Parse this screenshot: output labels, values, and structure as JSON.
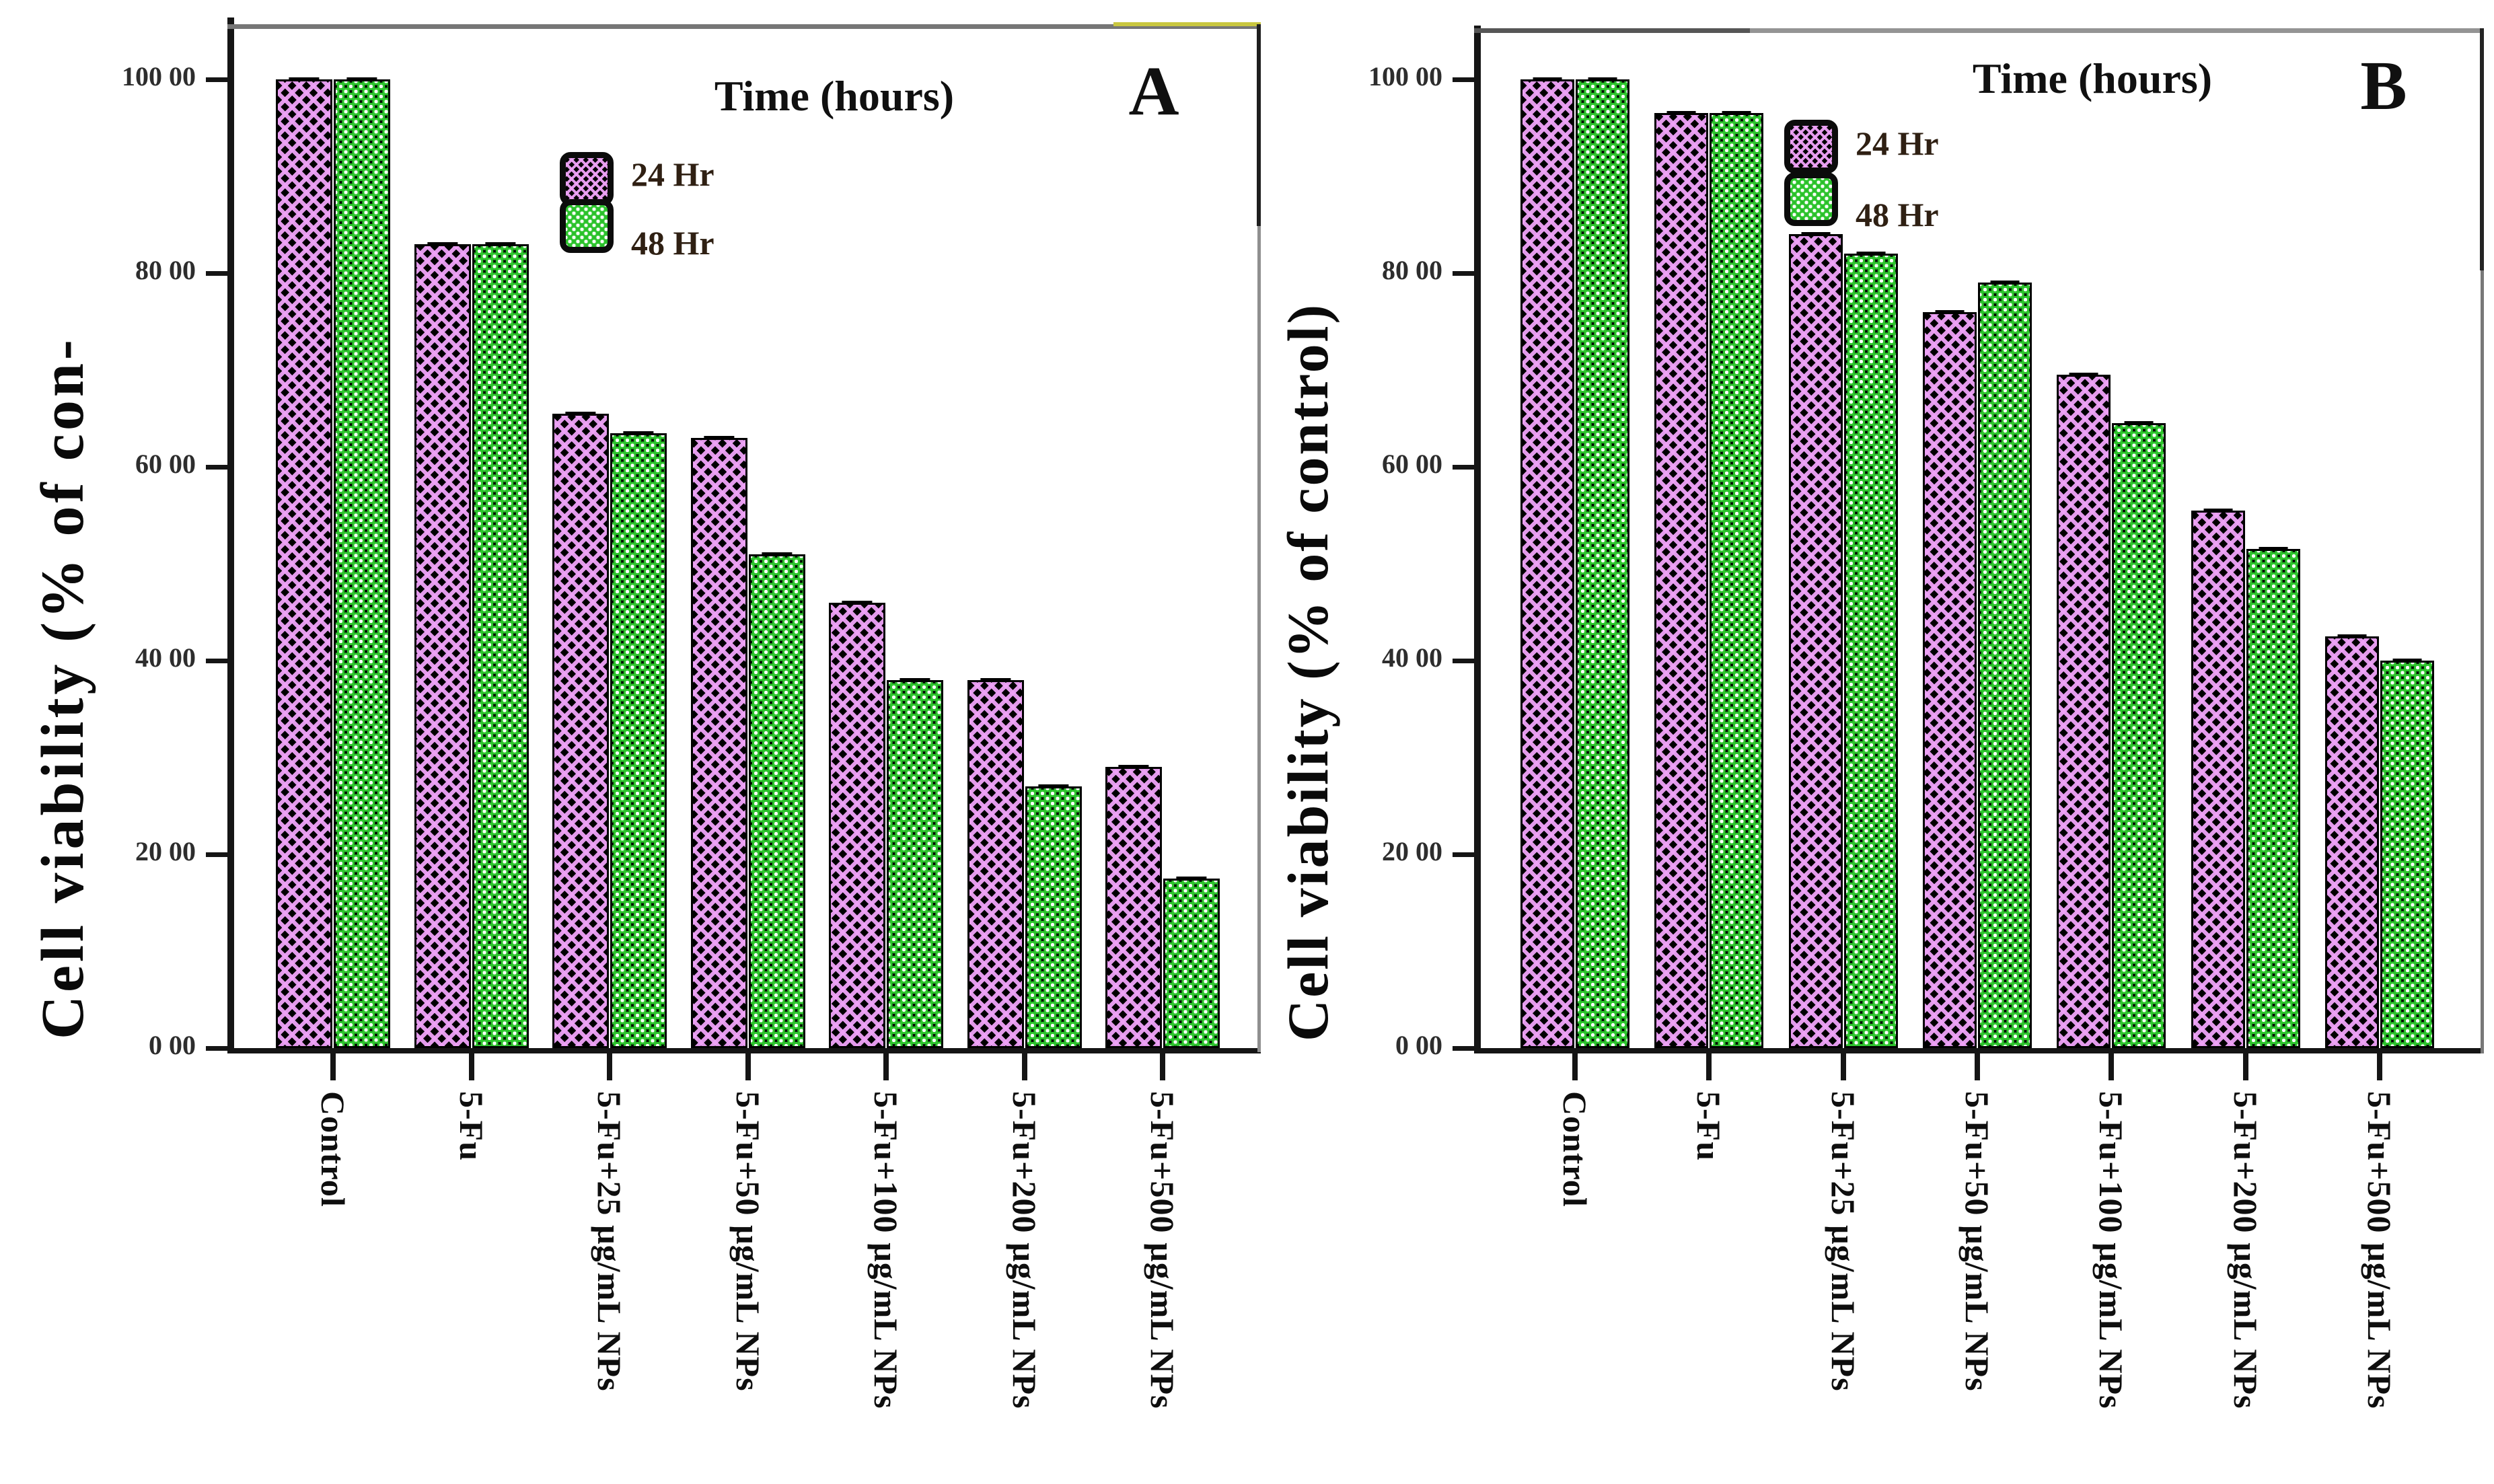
{
  "colors": {
    "series_24hr_violet": "#eea2f7",
    "series_48hr_green": "#2ec52e",
    "bar_background": "#000000",
    "axis": "#151515",
    "panel_a_top_border": "#767676",
    "panel_a_top_accent_yellow": "#c9c73f",
    "panel_b_top_border": "#565656",
    "legend_text": "#2f2013",
    "tick_text": "#2d2d2d"
  },
  "chart_data": [
    {
      "type": "bar",
      "panel_label": "A",
      "legend_title": "Time (hours)",
      "legend_position": "upper-left-inside",
      "grid": false,
      "error_bars": true,
      "ylabel": "Cell viability (% of con-",
      "xlabel": "",
      "ylim": [
        0,
        105
      ],
      "ytick_values": [
        0,
        20,
        40,
        60,
        80,
        100
      ],
      "ytick_labels": [
        "0 00",
        "20 00",
        "40 00",
        "60 00",
        "80 00",
        "100 00"
      ],
      "categories": [
        "Control",
        "5-Fu",
        "5-Fu+25 µg/mL NPs",
        "5-Fu+50 µg/mL NPs",
        "5-Fu+100 µg/mL NPs",
        "5-Fu+200 µg/mL NPs",
        "5-Fu+500 µg/mL NPs"
      ],
      "series": [
        {
          "name": "24 Hr",
          "values": [
            100,
            83,
            65.5,
            63,
            46,
            38,
            29
          ]
        },
        {
          "name": "48 Hr",
          "values": [
            100,
            83,
            63.5,
            51,
            38,
            27,
            17.5
          ]
        }
      ]
    },
    {
      "type": "bar",
      "panel_label": "B",
      "legend_title": "Time (hours)",
      "legend_position": "upper-middle-inside",
      "grid": false,
      "error_bars": true,
      "ylabel": "Cell viability (% of control)",
      "xlabel": "",
      "ylim": [
        0,
        105
      ],
      "ytick_values": [
        0,
        20,
        40,
        60,
        80,
        100
      ],
      "ytick_labels": [
        "0 00",
        "20 00",
        "40 00",
        "60 00",
        "80 00",
        "100 00"
      ],
      "categories": [
        "Control",
        "5-Fu",
        "5-Fu+25 µg/mL NPs",
        "5-Fu+50 µg/mL NPs",
        "5-Fu+100 µg/mL NPs",
        "5-Fu+200 µg/mL NPs",
        "5-Fu+500 µg/mL NPs"
      ],
      "series": [
        {
          "name": "24 Hr",
          "values": [
            100,
            96.5,
            84,
            76,
            69.5,
            55.5,
            42.5
          ]
        },
        {
          "name": "48 Hr",
          "values": [
            100,
            96.5,
            82,
            79,
            64.5,
            51.5,
            40
          ]
        }
      ]
    }
  ]
}
